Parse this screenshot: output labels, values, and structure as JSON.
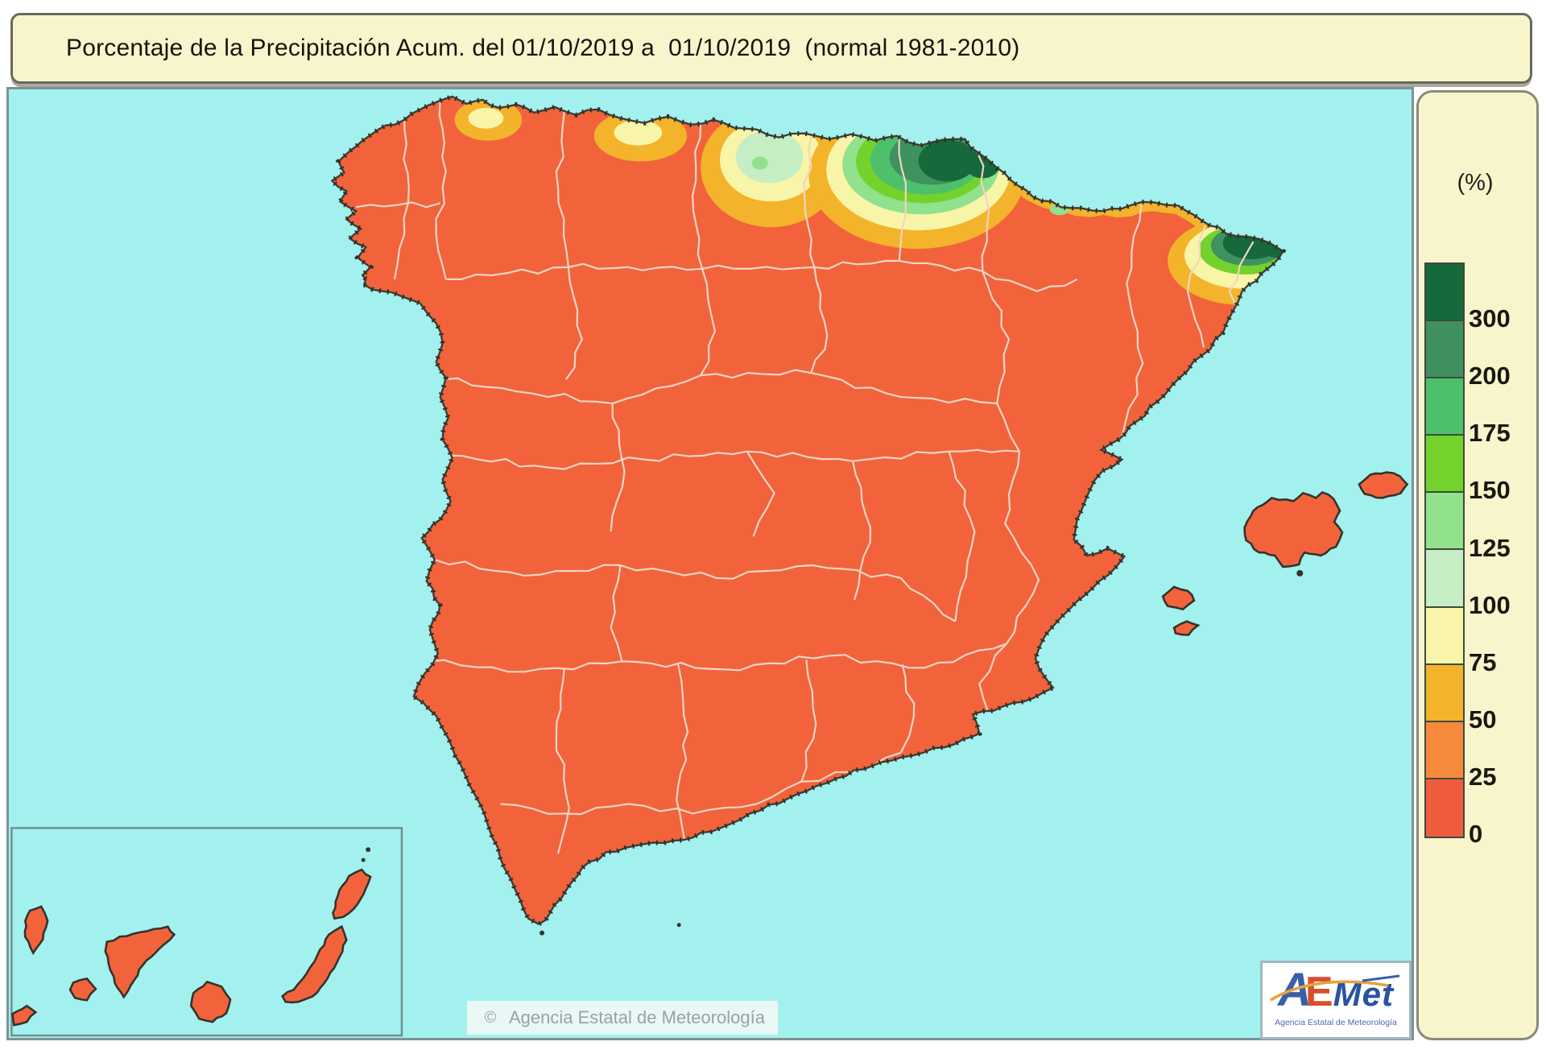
{
  "title": {
    "text": "Porcentaje de la Precipitación Acum. del 01/10/2019 a  01/10/2019  (normal 1981-2010)"
  },
  "legend": {
    "unit_label": "(%)",
    "ticks": [
      "300",
      "200",
      "175",
      "150",
      "125",
      "100",
      "75",
      "50",
      "25",
      "0"
    ],
    "colors": [
      "#15693a",
      "#3f915f",
      "#4ec06b",
      "#73d22b",
      "#91e18d",
      "#c5eec4",
      "#f8f5a8",
      "#f3b32b",
      "#f5893c",
      "#f05b3e"
    ]
  },
  "map": {
    "sea_color": "#a3f1ee",
    "land_color": "#f2633c",
    "coast_color": "#2f2f28",
    "province_line_color": "#f2d5c4",
    "copyright_symbol": "©",
    "copyright_text": "Agencia Estatal de Meteorología"
  },
  "logo": {
    "brand_a": "A",
    "brand_e": "E",
    "brand_met": "Met",
    "subtitle": "Agencia Estatal de Meteorología"
  }
}
